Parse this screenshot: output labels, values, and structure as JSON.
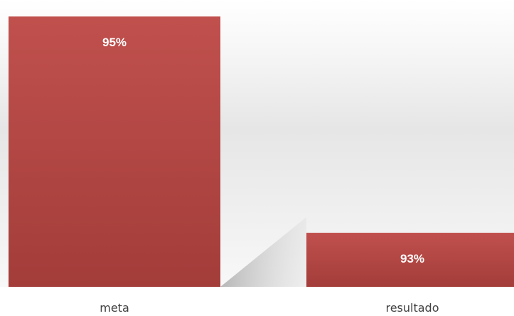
{
  "chart_data": {
    "type": "bar",
    "title": "",
    "xlabel": "",
    "ylabel": "",
    "categories": [
      "meta",
      "resultado"
    ],
    "values": [
      95,
      93
    ],
    "data_labels": [
      "95%",
      "93%"
    ],
    "unit": "%",
    "ylim": [
      92.5,
      95.1
    ],
    "grid": false,
    "legend": "none",
    "colors": {
      "bar_top": "#c0504d",
      "bar_bottom": "#a33d3a",
      "label_text": "#ffffff",
      "category_text": "#404040"
    }
  }
}
